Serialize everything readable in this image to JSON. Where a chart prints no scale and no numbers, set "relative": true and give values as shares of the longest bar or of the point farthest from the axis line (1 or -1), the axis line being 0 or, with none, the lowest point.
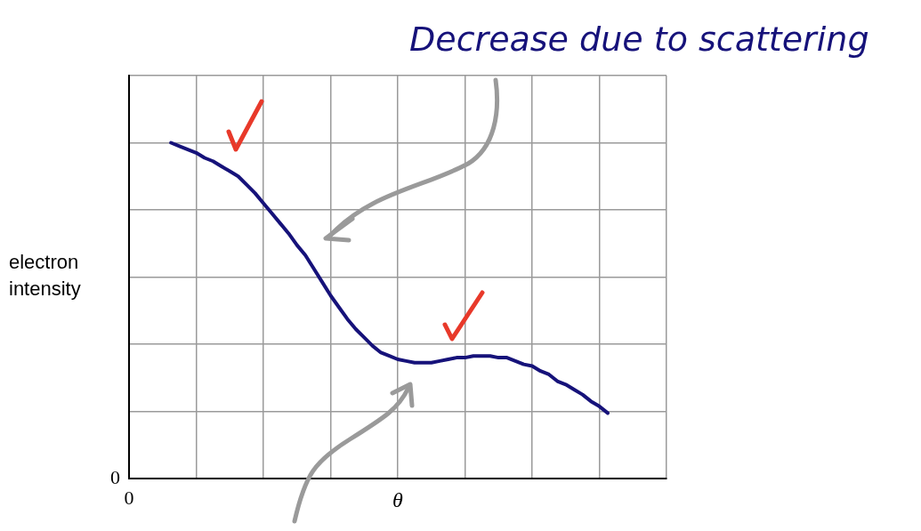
{
  "chart_data": {
    "type": "line",
    "relative": true,
    "xlabel": "θ",
    "ylabel": "electron intensity",
    "grid": true,
    "legend": false,
    "marker": "none",
    "line_style": "solid",
    "annotations": [
      "Decrease due to scattering",
      "0",
      "0"
    ],
    "categories": [
      null,
      null,
      null,
      null,
      null,
      null,
      null,
      null,
      null,
      null,
      null,
      null,
      null,
      null,
      null,
      null,
      null,
      null,
      null,
      null,
      null,
      null,
      null,
      null,
      null,
      null,
      null,
      null,
      null,
      null,
      null,
      null,
      null,
      null,
      null,
      null,
      null,
      null,
      null,
      null,
      null,
      null,
      null,
      null,
      null,
      null,
      null,
      null,
      null,
      null,
      null,
      null,
      null,
      null,
      null,
      null,
      null,
      null,
      null,
      null,
      null,
      null,
      null,
      null,
      null
    ],
    "series": [
      {
        "color": "#16127a",
        "values": [
          null,
          null,
          null,
          null,
          null,
          1,
          0.99,
          0.98,
          0.97,
          0.955,
          0.945,
          0.93,
          0.915,
          0.9,
          0.875,
          0.85,
          0.82,
          0.79,
          0.76,
          0.73,
          0.695,
          0.665,
          0.625,
          0.585,
          0.545,
          0.51,
          0.475,
          0.445,
          0.42,
          0.395,
          0.375,
          0.365,
          0.355,
          0.35,
          0.345,
          0.345,
          0.345,
          0.35,
          0.355,
          0.36,
          0.36,
          0.365,
          0.365,
          0.365,
          0.36,
          0.36,
          0.35,
          0.34,
          0.335,
          0.32,
          0.31,
          0.29,
          0.28,
          0.265,
          0.25,
          0.23,
          0.215,
          0.195,
          null,
          null,
          null,
          null,
          null,
          null,
          null
        ]
      }
    ]
  }
}
